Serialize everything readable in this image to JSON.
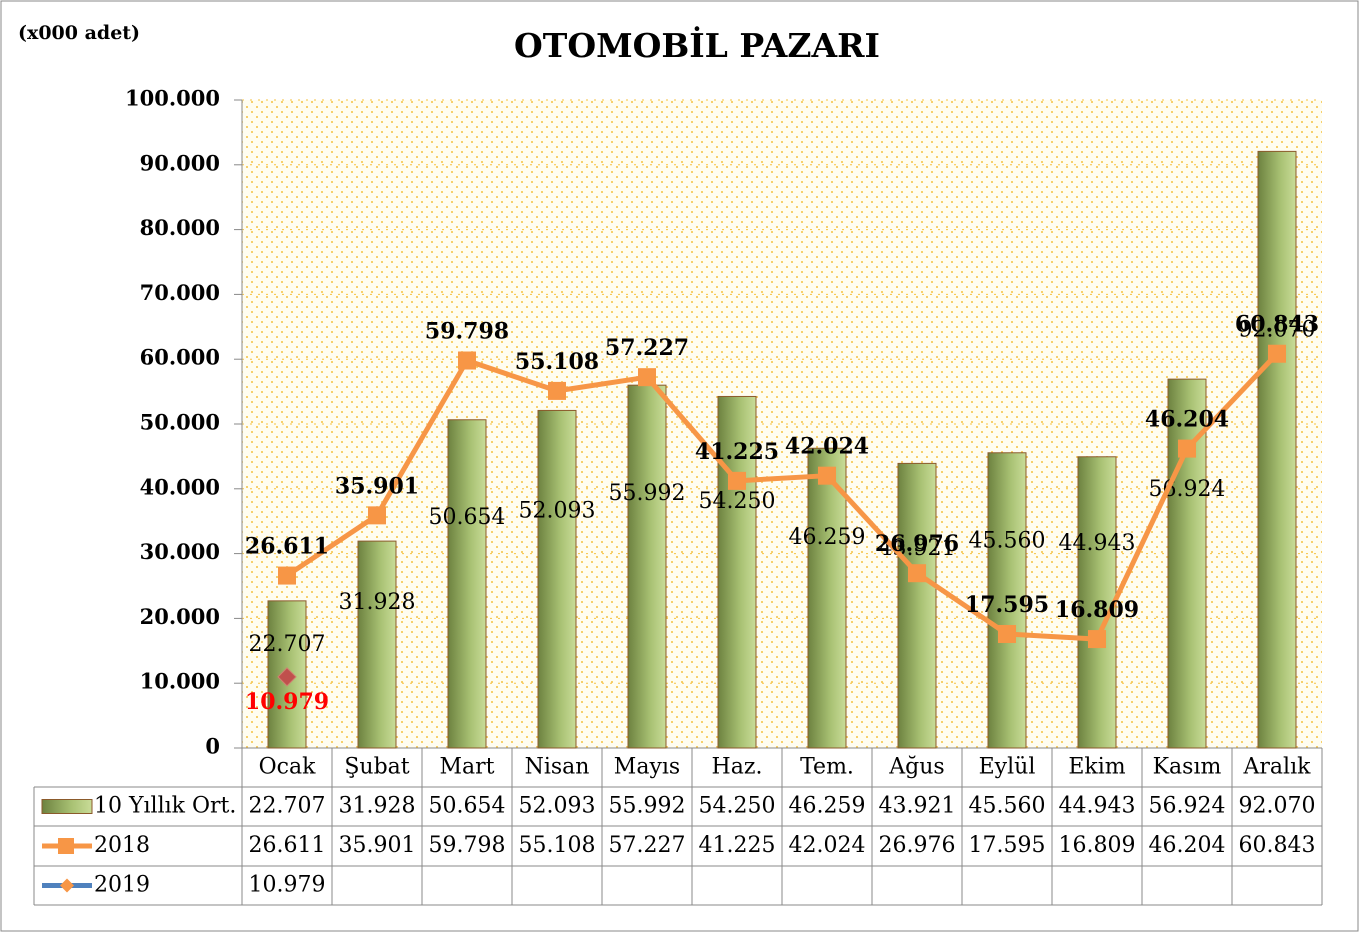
{
  "chart_data": {
    "type": "bar",
    "title": "OTOMOBİL PAZARI",
    "y_label": "(x000 adet)",
    "categories": [
      "Ocak",
      "Şubat",
      "Mart",
      "Nisan",
      "Mayıs",
      "Haz.",
      "Tem.",
      "Ağus",
      "Eylül",
      "Ekim",
      "Kasım",
      "Aralık"
    ],
    "ylim": [
      0,
      100000
    ],
    "yticks": [
      0,
      {
        "value": 10000,
        "label": "10.000"
      },
      {
        "value": 20000,
        "label": "20.000"
      },
      {
        "value": 30000,
        "label": "30.000"
      },
      {
        "value": 40000,
        "label": "40.000"
      },
      {
        "value": 50000,
        "label": "50.000"
      },
      {
        "value": 60000,
        "label": "60.000"
      },
      {
        "value": 70000,
        "label": "70.000"
      },
      {
        "value": 80000,
        "label": "80.000"
      },
      {
        "value": 90000,
        "label": "90.000"
      },
      {
        "value": 100000,
        "label": "100.000"
      }
    ],
    "grid": true,
    "series": [
      {
        "name": "10 Yıllık Ort.",
        "type": "bar",
        "color": "#9bb55f",
        "values": [
          22707,
          31928,
          50654,
          52093,
          55992,
          54250,
          46259,
          43921,
          45560,
          44943,
          56924,
          92070
        ],
        "value_labels": [
          "22.707",
          "31.928",
          "50.654",
          "52.093",
          "55.992",
          "54.250",
          "46.259",
          "43.921",
          "45.560",
          "44.943",
          "56.924",
          "92.070"
        ]
      },
      {
        "name": "2018",
        "type": "line",
        "color": "#f79646",
        "values": [
          26611,
          35901,
          59798,
          55108,
          57227,
          41225,
          42024,
          26976,
          17595,
          16809,
          46204,
          60843
        ],
        "value_labels": [
          "26.611",
          "35.901",
          "59.798",
          "55.108",
          "57.227",
          "41.225",
          "42.024",
          "26.976",
          "17.595",
          "16.809",
          "46.204",
          "60.843"
        ]
      },
      {
        "name": "2019",
        "type": "line",
        "color": "#4f81bd",
        "values": [
          10979,
          null,
          null,
          null,
          null,
          null,
          null,
          null,
          null,
          null,
          null,
          null
        ],
        "value_labels": [
          "10.979",
          null,
          null,
          null,
          null,
          null,
          null,
          null,
          null,
          null,
          null,
          null
        ]
      }
    ]
  }
}
